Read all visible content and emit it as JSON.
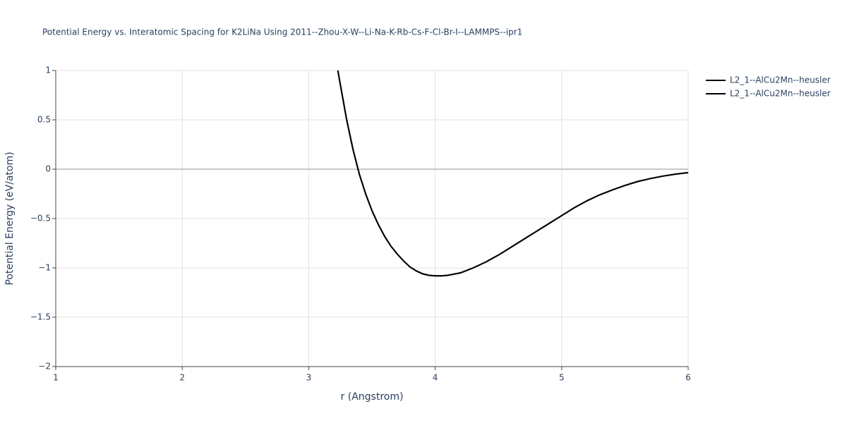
{
  "chart_data": {
    "type": "line",
    "title": "Potential Energy vs. Interatomic Spacing for K2LiNa Using 2011--Zhou-X-W--Li-Na-K-Rb-Cs-F-Cl-Br-I--LAMMPS--ipr1",
    "x_label": "r (Angstrom)",
    "y_label": "Potential Energy (eV/atom)",
    "x": [
      3.23,
      3.3,
      3.35,
      3.4,
      3.45,
      3.5,
      3.55,
      3.6,
      3.65,
      3.7,
      3.75,
      3.8,
      3.85,
      3.9,
      3.95,
      4.0,
      4.05,
      4.1,
      4.2,
      4.3,
      4.4,
      4.5,
      4.6,
      4.7,
      4.8,
      4.9,
      5.0,
      5.1,
      5.2,
      5.3,
      5.4,
      5.5,
      5.6,
      5.7,
      5.8,
      5.9,
      6.0
    ],
    "series": [
      {
        "name": "L2_1--AlCu2Mn--heusler",
        "color": "#000000",
        "values": [
          1.0,
          0.5,
          0.2,
          -0.05,
          -0.25,
          -0.42,
          -0.56,
          -0.68,
          -0.78,
          -0.86,
          -0.93,
          -0.99,
          -1.03,
          -1.06,
          -1.075,
          -1.08,
          -1.08,
          -1.075,
          -1.05,
          -1.0,
          -0.94,
          -0.87,
          -0.79,
          -0.71,
          -0.63,
          -0.55,
          -0.47,
          -0.39,
          -0.32,
          -0.26,
          -0.21,
          -0.165,
          -0.125,
          -0.095,
          -0.07,
          -0.05,
          -0.035
        ]
      },
      {
        "name": "L2_1--AlCu2Mn--heusler",
        "color": "#000000",
        "values": [
          1.0,
          0.5,
          0.2,
          -0.05,
          -0.25,
          -0.42,
          -0.56,
          -0.68,
          -0.78,
          -0.86,
          -0.93,
          -0.99,
          -1.03,
          -1.06,
          -1.075,
          -1.08,
          -1.08,
          -1.075,
          -1.05,
          -1.0,
          -0.94,
          -0.87,
          -0.79,
          -0.71,
          -0.63,
          -0.55,
          -0.47,
          -0.39,
          -0.32,
          -0.26,
          -0.21,
          -0.165,
          -0.125,
          -0.095,
          -0.07,
          -0.05,
          -0.035
        ]
      }
    ],
    "xlim": [
      1,
      6
    ],
    "xticks": [
      1,
      2,
      3,
      4,
      5,
      6
    ],
    "ylim": [
      -2,
      1
    ],
    "yticks": [
      {
        "value": -2,
        "label": "−2"
      },
      {
        "value": -1.5,
        "label": "−1.5"
      },
      {
        "value": -1,
        "label": "−1"
      },
      {
        "value": -0.5,
        "label": "−0.5"
      },
      0,
      0.5,
      1
    ],
    "grid": true,
    "legend": "right"
  }
}
